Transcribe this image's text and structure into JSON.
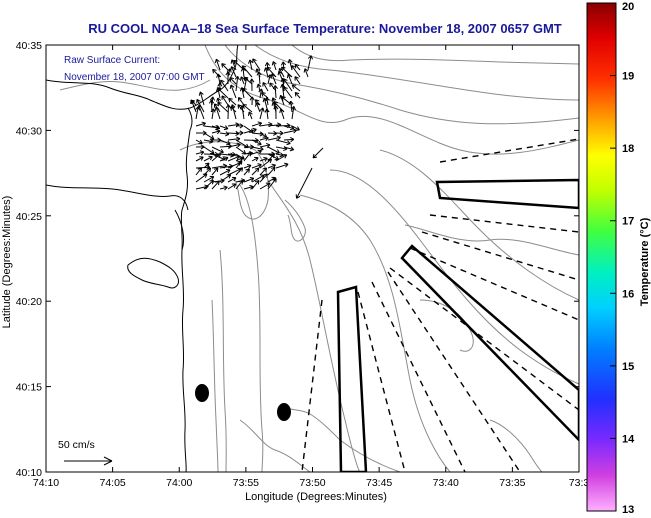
{
  "title": "RU COOL  NOAA–18  Sea Surface Temperature:  November 18, 2007 0657 GMT",
  "current_label": {
    "line1": "Raw Surface Current:",
    "line2": "November 18, 2007 07:00 GMT"
  },
  "scale_label": "50 cm/s",
  "x_axis": {
    "title": "Longitude (Degrees:Minutes)",
    "ticks": [
      "74:10",
      "74:05",
      "74:00",
      "73:55",
      "73:50",
      "73:45",
      "73:40",
      "73:35",
      "73:3"
    ]
  },
  "y_axis": {
    "title": "Latitude (Degrees:Minutes)",
    "ticks": [
      "40:35",
      "40:30",
      "40:25",
      "40:20",
      "40:15",
      "40:10"
    ]
  },
  "colorbar": {
    "title": "Temperature (°C)",
    "ticks": [
      "20",
      "19",
      "18",
      "17",
      "16",
      "15",
      "14",
      "13"
    ],
    "min": 13,
    "max": 20
  },
  "colors": {
    "title_text": "#1a1a9a",
    "contour": "#8c8c8c",
    "coastline": "#000000"
  }
}
